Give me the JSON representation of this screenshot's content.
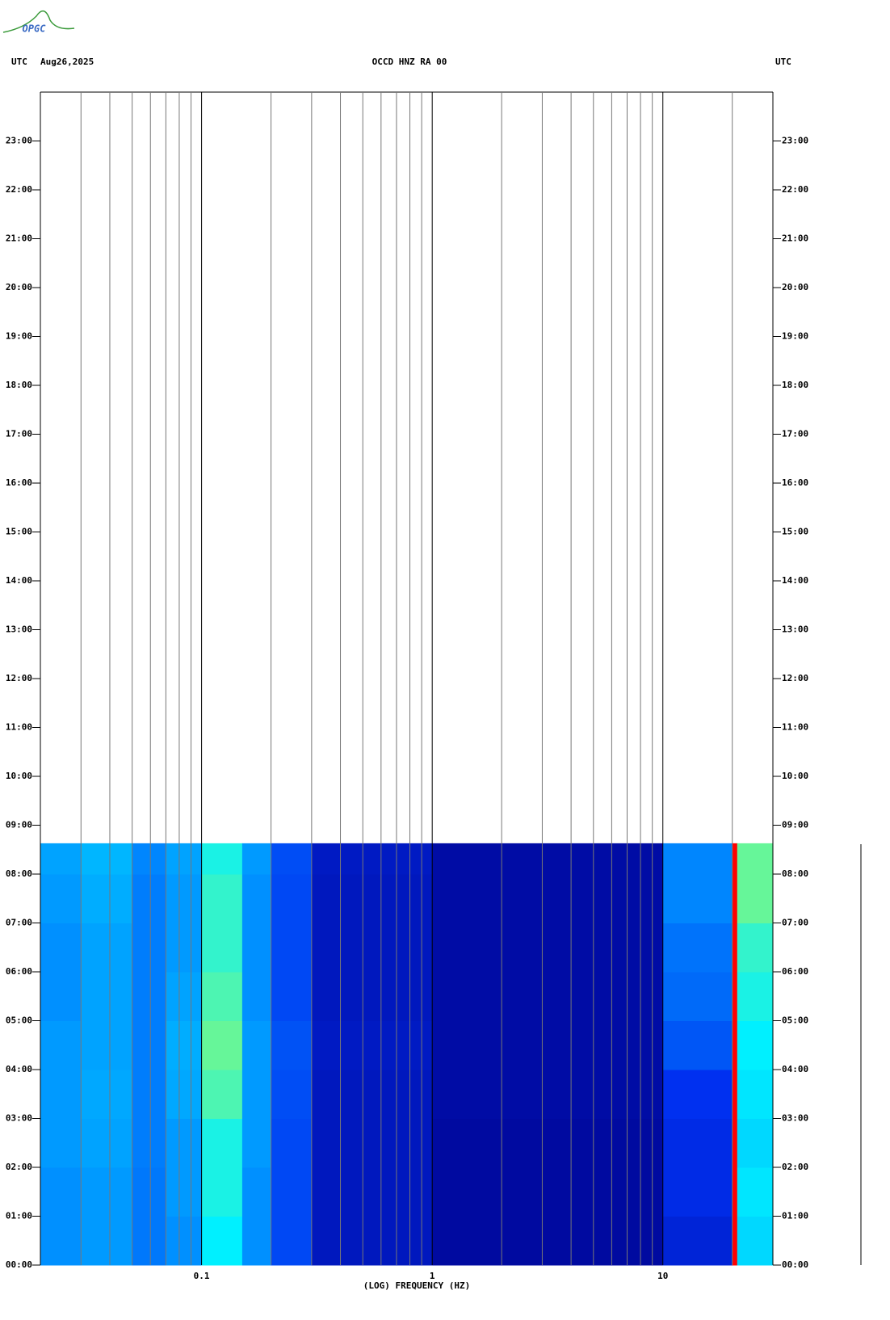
{
  "logo": "OPGC",
  "chart_data": {
    "type": "heatmap",
    "title": "OCCD HNZ RA 00",
    "date": "Aug26,2025",
    "left_label": "UTC",
    "right_label": "UTC",
    "xlabel": "(LOG) FREQUENCY (HZ)",
    "xscale": "log",
    "xlim": [
      0.02,
      30
    ],
    "xticks": [
      0.1,
      1,
      10
    ],
    "xminor": [
      0.03,
      0.04,
      0.05,
      0.06,
      0.07,
      0.08,
      0.09,
      0.2,
      0.3,
      0.4,
      0.5,
      0.6,
      0.7,
      0.8,
      0.9,
      2,
      3,
      4,
      5,
      6,
      7,
      8,
      9,
      20
    ],
    "ylim": [
      0,
      24
    ],
    "yticks": [
      {
        "value": 0,
        "label": "00:00"
      },
      {
        "value": 1,
        "label": "01:00"
      },
      {
        "value": 2,
        "label": "02:00"
      },
      {
        "value": 3,
        "label": "03:00"
      },
      {
        "value": 4,
        "label": "04:00"
      },
      {
        "value": 5,
        "label": "05:00"
      },
      {
        "value": 6,
        "label": "06:00"
      },
      {
        "value": 7,
        "label": "07:00"
      },
      {
        "value": 8,
        "label": "08:00"
      },
      {
        "value": 9,
        "label": "09:00"
      },
      {
        "value": 10,
        "label": "10:00"
      },
      {
        "value": 11,
        "label": "11:00"
      },
      {
        "value": 12,
        "label": "12:00"
      },
      {
        "value": 13,
        "label": "13:00"
      },
      {
        "value": 14,
        "label": "14:00"
      },
      {
        "value": 15,
        "label": "15:00"
      },
      {
        "value": 16,
        "label": "16:00"
      },
      {
        "value": 17,
        "label": "17:00"
      },
      {
        "value": 18,
        "label": "18:00"
      },
      {
        "value": 19,
        "label": "19:00"
      },
      {
        "value": 20,
        "label": "20:00"
      },
      {
        "value": 21,
        "label": "21:00"
      },
      {
        "value": 22,
        "label": "22:00"
      },
      {
        "value": 23,
        "label": "23:00"
      }
    ],
    "colormap": [
      "#00008c",
      "#0030f0",
      "#0090ff",
      "#00f0ff",
      "#ffff00",
      "#ff0000"
    ],
    "x_edges": [
      0.02,
      0.03,
      0.05,
      0.07,
      0.1,
      0.15,
      0.2,
      0.3,
      1,
      10,
      20,
      21,
      30
    ],
    "y_edges": [
      0,
      1,
      2,
      3,
      4,
      5,
      6,
      7,
      8,
      8.63
    ],
    "values": [
      [
        0.4,
        0.42,
        0.35,
        0.4,
        0.6,
        0.4,
        0.25,
        0.1,
        0.04,
        0.15,
        1,
        0.55
      ],
      [
        0.4,
        0.42,
        0.35,
        0.42,
        0.62,
        0.4,
        0.25,
        0.1,
        0.04,
        0.18,
        1,
        0.58
      ],
      [
        0.42,
        0.44,
        0.36,
        0.42,
        0.62,
        0.42,
        0.25,
        0.1,
        0.04,
        0.18,
        1,
        0.55
      ],
      [
        0.42,
        0.45,
        0.36,
        0.45,
        0.66,
        0.42,
        0.26,
        0.1,
        0.05,
        0.2,
        1,
        0.58
      ],
      [
        0.42,
        0.44,
        0.36,
        0.46,
        0.68,
        0.42,
        0.27,
        0.11,
        0.05,
        0.28,
        1,
        0.6
      ],
      [
        0.4,
        0.44,
        0.36,
        0.44,
        0.66,
        0.4,
        0.25,
        0.1,
        0.05,
        0.32,
        1,
        0.62
      ],
      [
        0.4,
        0.44,
        0.36,
        0.42,
        0.64,
        0.4,
        0.25,
        0.1,
        0.05,
        0.34,
        1,
        0.64
      ],
      [
        0.42,
        0.46,
        0.36,
        0.42,
        0.64,
        0.4,
        0.25,
        0.1,
        0.05,
        0.38,
        1,
        0.68
      ],
      [
        0.44,
        0.48,
        0.38,
        0.44,
        0.62,
        0.42,
        0.26,
        0.11,
        0.05,
        0.38,
        1,
        0.68
      ]
    ]
  }
}
